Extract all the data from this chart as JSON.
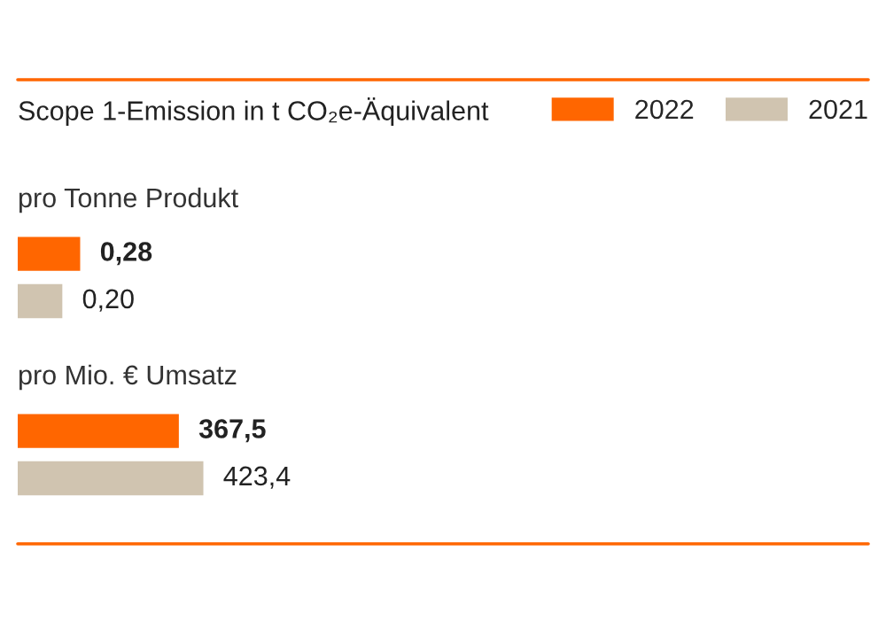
{
  "chart_data": [
    {
      "type": "bar",
      "orientation": "horizontal",
      "title": "Scope 1-Emission in t CO₂e-Äquivalent",
      "subtitle": "pro Tonne Produkt",
      "categories": [
        null
      ],
      "legend": "top right",
      "series": [
        {
          "name": "2022",
          "color": "#ff6600",
          "values": [
            0.28
          ],
          "value_labels": [
            "0,28"
          ]
        },
        {
          "name": "2021",
          "color": "#d0c4b0",
          "values": [
            0.2
          ],
          "value_labels": [
            "0,20"
          ]
        }
      ]
    },
    {
      "type": "bar",
      "orientation": "horizontal",
      "subtitle": "pro Mio. € Umsatz",
      "categories": [
        null
      ],
      "series": [
        {
          "color": "#ff6600",
          "values": [
            367.5
          ],
          "value_labels": [
            "367,5"
          ]
        },
        {
          "color": "#d0c4b0",
          "values": [
            423.4
          ],
          "value_labels": [
            "423,4"
          ]
        }
      ]
    }
  ]
}
